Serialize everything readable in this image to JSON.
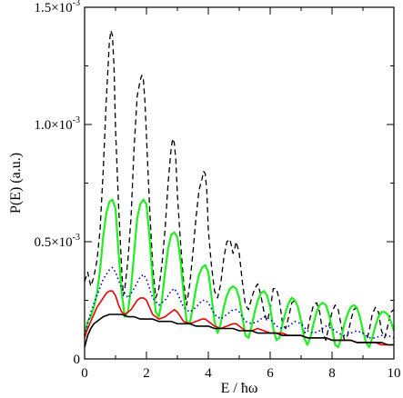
{
  "chart_data": {
    "type": "line",
    "xlabel": "E / ħω",
    "ylabel": "P(E) (a.u.)",
    "xlim": [
      0,
      10
    ],
    "ylim": [
      0,
      0.0015
    ],
    "grid": false,
    "x_ticks": [
      0,
      2,
      4,
      6,
      8,
      10
    ],
    "x_tick_labels": [
      "0",
      "2",
      "4",
      "6",
      "8",
      "10"
    ],
    "y_ticks": [
      0,
      0.0005,
      0.001,
      0.0015
    ],
    "y_tick_labels": [
      {
        "mantissa": "0",
        "exponent": ""
      },
      {
        "mantissa": "0.5×10",
        "exponent": "-3"
      },
      {
        "mantissa": "1.0×10",
        "exponent": "-3"
      },
      {
        "mantissa": "1.5×10",
        "exponent": "-3"
      }
    ],
    "series": [
      {
        "color": "#000000",
        "dash": "6,4",
        "stroke_width": 1.3,
        "x": [
          0,
          0.1,
          0.2,
          0.3,
          0.4,
          0.5,
          0.6,
          0.7,
          0.8,
          0.85,
          0.9,
          0.95,
          1.0,
          1.1,
          1.2,
          1.25,
          1.3,
          1.4,
          1.5,
          1.6,
          1.7,
          1.8,
          1.85,
          1.9,
          1.95,
          2.0,
          2.1,
          2.2,
          2.3,
          2.4,
          2.5,
          2.6,
          2.7,
          2.8,
          2.85,
          2.9,
          2.95,
          3.0,
          3.1,
          3.2,
          3.3,
          3.4,
          3.5,
          3.6,
          3.7,
          3.8,
          3.85,
          3.9,
          3.95,
          4.0,
          4.1,
          4.2,
          4.3,
          4.4,
          4.5,
          4.6,
          4.7,
          4.8,
          4.85,
          4.9,
          5.0,
          5.1,
          5.2,
          5.3,
          5.4,
          5.5,
          5.6,
          5.7,
          5.8,
          5.9,
          6.0,
          6.1,
          6.2,
          6.3,
          6.4,
          6.5,
          6.6,
          6.7,
          6.8,
          6.9,
          7.0,
          7.1,
          7.2,
          7.3,
          7.4,
          7.5,
          7.6,
          7.7,
          7.8,
          7.9,
          8.0,
          8.1,
          8.2,
          8.3,
          8.4,
          8.5,
          8.6,
          8.7,
          8.8,
          8.9,
          9.0,
          9.1,
          9.2,
          9.3,
          9.4,
          9.5,
          9.6,
          9.7,
          9.8,
          9.9,
          10.0
        ],
        "y": [
          0.00033,
          0.00037,
          0.00031,
          0.00035,
          0.00042,
          0.00055,
          0.0008,
          0.0011,
          0.00135,
          0.0014,
          0.00138,
          0.00125,
          0.00098,
          0.00065,
          0.00038,
          0.00027,
          0.0003,
          0.00042,
          0.0006,
          0.0009,
          0.00112,
          0.00119,
          0.00121,
          0.00119,
          0.0011,
          0.00095,
          0.00065,
          0.0004,
          0.00026,
          0.0003,
          0.0004,
          0.00055,
          0.00075,
          0.0009,
          0.00094,
          0.00092,
          0.00085,
          0.0007,
          0.0005,
          0.00033,
          0.00023,
          0.00032,
          0.00045,
          0.0006,
          0.00072,
          0.00077,
          0.0008,
          0.00079,
          0.00072,
          0.00055,
          0.0004,
          0.00029,
          0.00026,
          0.00032,
          0.00043,
          0.0005,
          0.00051,
          0.00045,
          0.00047,
          0.0005,
          0.00045,
          0.00033,
          0.00023,
          0.00021,
          0.00026,
          0.0003,
          0.00032,
          0.00027,
          0.0002,
          0.00016,
          0.00021,
          0.0003,
          0.0003,
          0.00025,
          0.00015,
          0.00013,
          0.00018,
          0.00024,
          0.00025,
          0.00022,
          0.00017,
          0.00011,
          0.00012,
          0.00018,
          0.00023,
          0.00024,
          0.0002,
          0.00011,
          8e-05,
          0.00014,
          0.0002,
          0.00023,
          0.00021,
          0.00014,
          8e-05,
          0.0001,
          0.00016,
          0.00021,
          0.00022,
          0.00018,
          0.00011,
          7e-05,
          0.00012,
          0.00019,
          0.00022,
          0.0002,
          0.00012,
          9e-05,
          0.00014,
          0.0002,
          0.00021
        ]
      },
      {
        "color": "#22ee22",
        "dash": "",
        "stroke_width": 2.2,
        "x": [
          0,
          0.1,
          0.2,
          0.3,
          0.4,
          0.5,
          0.6,
          0.7,
          0.8,
          0.9,
          1.0,
          1.1,
          1.2,
          1.3,
          1.4,
          1.5,
          1.6,
          1.7,
          1.8,
          1.9,
          2.0,
          2.1,
          2.2,
          2.3,
          2.4,
          2.5,
          2.6,
          2.7,
          2.8,
          2.9,
          3.0,
          3.1,
          3.2,
          3.3,
          3.4,
          3.5,
          3.6,
          3.7,
          3.8,
          3.9,
          4.0,
          4.1,
          4.2,
          4.3,
          4.4,
          4.5,
          4.6,
          4.7,
          4.8,
          4.9,
          5.0,
          5.1,
          5.2,
          5.3,
          5.4,
          5.5,
          5.6,
          5.7,
          5.8,
          5.9,
          6.0,
          6.1,
          6.2,
          6.3,
          6.4,
          6.5,
          6.6,
          6.7,
          6.8,
          6.9,
          7.0,
          7.1,
          7.2,
          7.3,
          7.4,
          7.5,
          7.6,
          7.7,
          7.8,
          7.9,
          8.0,
          8.1,
          8.2,
          8.3,
          8.4,
          8.5,
          8.6,
          8.7,
          8.8,
          8.9,
          9.0,
          9.1,
          9.2,
          9.3,
          9.4,
          9.5,
          9.6,
          9.7,
          9.8,
          9.9,
          10.0
        ],
        "y": [
          0.0001,
          0.00016,
          0.00018,
          0.00022,
          0.00028,
          0.00038,
          0.00052,
          0.00062,
          0.00067,
          0.00068,
          0.00064,
          0.00045,
          0.00028,
          0.00018,
          0.0002,
          0.0003,
          0.00045,
          0.0006,
          0.00066,
          0.00068,
          0.00066,
          0.00052,
          0.00033,
          0.0002,
          0.00018,
          0.00025,
          0.00037,
          0.00047,
          0.00053,
          0.00054,
          0.00052,
          0.00042,
          0.00028,
          0.00016,
          0.00015,
          0.00022,
          0.0003,
          0.00036,
          0.00039,
          0.0004,
          0.00037,
          0.00027,
          0.00016,
          0.00011,
          0.00015,
          0.00022,
          0.00027,
          0.0003,
          0.00031,
          0.0003,
          0.00026,
          0.00018,
          0.0001,
          9e-05,
          0.00014,
          0.0002,
          0.00025,
          0.00028,
          0.00029,
          0.00027,
          0.00022,
          0.00013,
          8e-05,
          9e-05,
          0.00015,
          0.0002,
          0.00024,
          0.00026,
          0.00025,
          0.00022,
          0.00016,
          9e-05,
          6e-05,
          9e-05,
          0.00015,
          0.0002,
          0.00023,
          0.00024,
          0.00023,
          0.00019,
          0.00013,
          6e-05,
          5e-05,
          9e-05,
          0.00015,
          0.00019,
          0.00022,
          0.00023,
          0.00022,
          0.00018,
          0.00012,
          7e-05,
          5e-05,
          9e-05,
          0.00014,
          0.00018,
          0.0002,
          0.0002,
          0.00019,
          0.00016,
          0.00012
        ]
      },
      {
        "color": "#0000cc",
        "dash": "1.5,3",
        "stroke_width": 1.6,
        "x": [
          0,
          0.2,
          0.4,
          0.6,
          0.8,
          0.9,
          1.0,
          1.2,
          1.4,
          1.6,
          1.8,
          1.9,
          2.0,
          2.2,
          2.4,
          2.6,
          2.8,
          2.9,
          3.0,
          3.2,
          3.4,
          3.6,
          3.8,
          3.9,
          4.0,
          4.2,
          4.4,
          4.6,
          4.8,
          4.9,
          5.0,
          5.2,
          5.4,
          5.6,
          5.8,
          6.0,
          6.2,
          6.4,
          6.6,
          6.8,
          7.0,
          7.2,
          7.4,
          7.6,
          7.8,
          8.0,
          8.2,
          8.4,
          8.6,
          8.8,
          9.0,
          9.2,
          9.4,
          9.6,
          9.8,
          10.0
        ],
        "y": [
          0.0001,
          0.0002,
          0.00027,
          0.00034,
          0.00038,
          0.00039,
          0.00037,
          0.0003,
          0.00026,
          0.0003,
          0.00035,
          0.00036,
          0.00034,
          0.00026,
          0.00023,
          0.00025,
          0.00029,
          0.0003,
          0.00028,
          0.00022,
          0.0002,
          0.00022,
          0.00025,
          0.00025,
          0.00024,
          0.00019,
          0.00017,
          0.00019,
          0.00021,
          0.00021,
          0.0002,
          0.00016,
          0.00015,
          0.00016,
          0.00018,
          0.00017,
          0.00014,
          0.00013,
          0.00014,
          0.00016,
          0.00015,
          0.00012,
          0.00011,
          0.00012,
          0.00014,
          0.00013,
          0.00011,
          0.0001,
          0.00011,
          0.00012,
          0.00011,
          9e-05,
          9e-05,
          0.0001,
          0.0001,
          9e-05
        ]
      },
      {
        "color": "#ee0000",
        "dash": "",
        "stroke_width": 1.6,
        "x": [
          0,
          0.1,
          0.2,
          0.3,
          0.4,
          0.5,
          0.6,
          0.7,
          0.8,
          0.9,
          1.0,
          1.1,
          1.2,
          1.3,
          1.4,
          1.5,
          1.6,
          1.7,
          1.8,
          1.9,
          2.0,
          2.1,
          2.2,
          2.4,
          2.6,
          2.8,
          2.9,
          3.0,
          3.1,
          3.2,
          3.4,
          3.6,
          3.8,
          3.9,
          4.0,
          4.1,
          4.2,
          4.4,
          4.6,
          4.8,
          4.9,
          5.0,
          5.2,
          5.4,
          5.6,
          5.8,
          6.0,
          6.2,
          6.4,
          6.6,
          6.8,
          7.0,
          7.2,
          7.4,
          7.6,
          7.8,
          8.0,
          8.2,
          8.4,
          8.6,
          8.8,
          9.0,
          9.2,
          9.4,
          9.6,
          9.8,
          10.0
        ],
        "y": [
          9e-05,
          0.00013,
          0.00016,
          0.00019,
          0.00022,
          0.00024,
          0.00026,
          0.00028,
          0.00029,
          0.00029,
          0.00027,
          0.00023,
          0.0002,
          0.00019,
          0.0002,
          0.00021,
          0.00023,
          0.00025,
          0.00026,
          0.00026,
          0.00025,
          0.00022,
          0.00019,
          0.00017,
          0.00018,
          0.0002,
          0.00021,
          0.0002,
          0.00018,
          0.00016,
          0.00015,
          0.00016,
          0.00017,
          0.00017,
          0.00016,
          0.00015,
          0.00014,
          0.00013,
          0.00014,
          0.00015,
          0.00015,
          0.00014,
          0.00012,
          0.00012,
          0.00013,
          0.00012,
          0.00011,
          0.00011,
          0.00011,
          0.0001,
          0.0001,
          0.0001,
          9e-05,
          9e-05,
          9e-05,
          9e-05,
          8e-05,
          8e-05,
          8e-05,
          8e-05,
          7e-05,
          7e-05,
          7e-05,
          7e-05,
          6e-05,
          6e-05,
          6e-05
        ]
      },
      {
        "color": "#000000",
        "dash": "",
        "stroke_width": 1.6,
        "x": [
          0,
          0.1,
          0.2,
          0.3,
          0.4,
          0.5,
          0.6,
          0.8,
          1.0,
          1.2,
          1.4,
          1.6,
          1.8,
          2.0,
          2.2,
          2.4,
          2.6,
          2.8,
          3.0,
          3.2,
          3.4,
          3.6,
          3.8,
          4.0,
          4.2,
          4.4,
          4.6,
          4.8,
          5.0,
          5.2,
          5.4,
          5.6,
          5.8,
          6.0,
          6.2,
          6.4,
          6.6,
          6.8,
          7.0,
          7.2,
          7.4,
          7.6,
          7.8,
          8.0,
          8.2,
          8.4,
          8.6,
          8.8,
          9.0,
          9.2,
          9.4,
          9.6,
          9.8,
          10.0
        ],
        "y": [
          5e-05,
          0.0001,
          0.00013,
          0.00015,
          0.00016,
          0.00017,
          0.00018,
          0.00019,
          0.00019,
          0.00019,
          0.00018,
          0.00018,
          0.00017,
          0.00017,
          0.00017,
          0.00016,
          0.00016,
          0.00016,
          0.00015,
          0.00015,
          0.00015,
          0.00014,
          0.00014,
          0.00014,
          0.00013,
          0.00013,
          0.00013,
          0.00013,
          0.00012,
          0.00012,
          0.00012,
          0.00011,
          0.00011,
          0.00011,
          0.00011,
          0.0001,
          0.0001,
          0.0001,
          0.0001,
          9e-05,
          9e-05,
          9e-05,
          9e-05,
          8e-05,
          8e-05,
          8e-05,
          8e-05,
          7e-05,
          7e-05,
          7e-05,
          7e-05,
          7e-05,
          6e-05,
          6e-05
        ]
      }
    ]
  }
}
